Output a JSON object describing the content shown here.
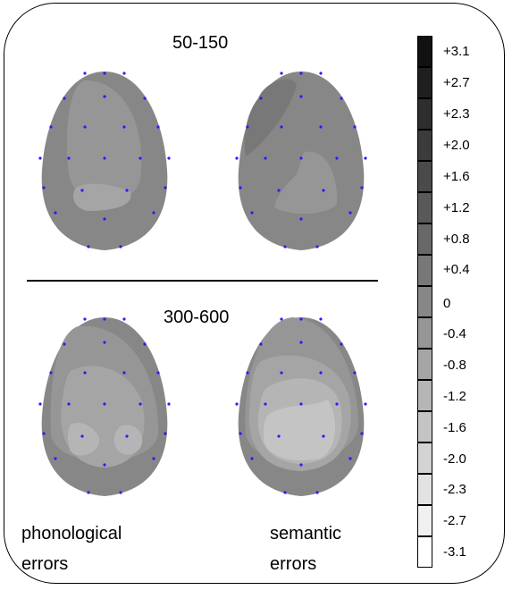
{
  "windows": [
    "50-150",
    "300-600"
  ],
  "captions": {
    "left": [
      "phonological",
      "errors"
    ],
    "right": [
      "semantic",
      "errors"
    ]
  },
  "scale": {
    "labels": [
      "+3.1",
      "+2.7",
      "+2.3",
      "+2.0",
      "+1.6",
      "+1.2",
      "+0.8",
      "+0.4",
      "0",
      "-0.4",
      "-0.8",
      "-1.2",
      "-1.6",
      "-2.0",
      "-2.3",
      "-2.7",
      "-3.1"
    ],
    "colors": [
      "#111111",
      "#1f1f1f",
      "#2e2e2e",
      "#3b3b3b",
      "#4a4a4a",
      "#595959",
      "#686868",
      "#787878",
      "#878787",
      "#969696",
      "#a5a5a5",
      "#b5b5b5",
      "#c4c4c4",
      "#d3d3d3",
      "#e2e2e2",
      "#f0f0f0",
      "#ffffff"
    ]
  },
  "maps": [
    {
      "window": "50-150",
      "condition": "phonological errors",
      "base_color": "#878787",
      "region_colors": [
        "#969696",
        "#a5a5a5"
      ]
    },
    {
      "window": "50-150",
      "condition": "semantic errors",
      "base_color": "#878787",
      "region_colors": [
        "#787878",
        "#969696"
      ]
    },
    {
      "window": "300-600",
      "condition": "phonological errors",
      "base_color": "#878787",
      "region_colors": [
        "#969696",
        "#a5a5a5",
        "#b5b5b5"
      ]
    },
    {
      "window": "300-600",
      "condition": "semantic errors",
      "base_color": "#878787",
      "region_colors": [
        "#969696",
        "#a5a5a5",
        "#b5b5b5",
        "#c4c4c4"
      ]
    }
  ],
  "electrode_color": "#2020ff"
}
